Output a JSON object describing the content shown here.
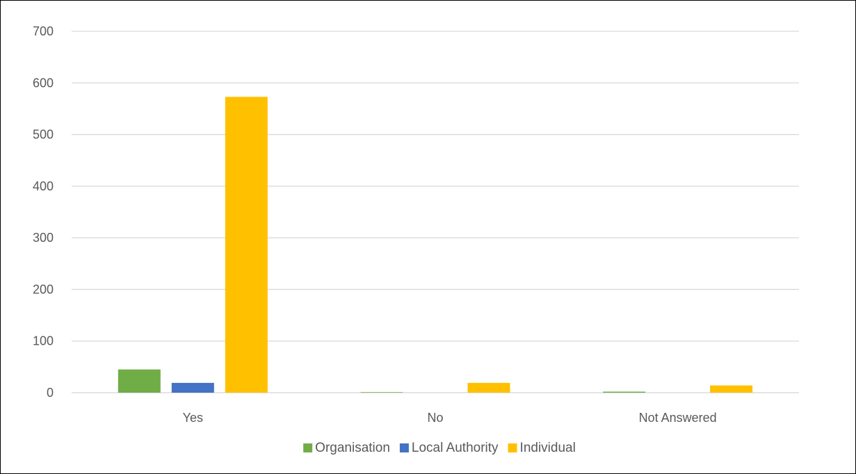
{
  "chart_data": {
    "type": "bar",
    "title": "",
    "xlabel": "",
    "ylabel": "",
    "categories": [
      "Yes",
      "No",
      "Not Answered"
    ],
    "series": [
      {
        "name": "Organisation",
        "values": [
          45,
          1,
          2
        ]
      },
      {
        "name": "Local Authority",
        "values": [
          19,
          0,
          0
        ]
      },
      {
        "name": "Individual",
        "values": [
          573,
          19,
          14
        ]
      }
    ],
    "ylim": [
      0,
      700
    ],
    "yticks": [
      "0",
      "100",
      "200",
      "300",
      "400",
      "500",
      "600",
      "700"
    ],
    "grid": true,
    "legend_position": "bottom",
    "colors": {
      "Organisation": "#70ad47",
      "Local Authority": "#4472c4",
      "Individual": "#ffc000",
      "gridline": "#d9d9d9"
    }
  }
}
